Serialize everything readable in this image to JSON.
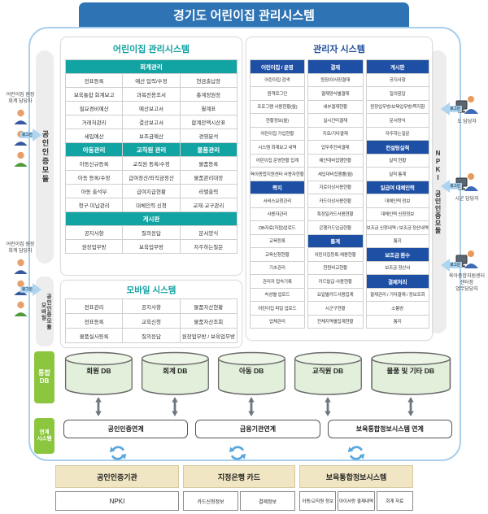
{
  "title": "경기도 어린이집 관리시스템",
  "login_label": "로그인",
  "modules": {
    "left_upper": "공인인증모듈",
    "left_lower_line1": "모바일",
    "left_lower_line2": "공인인증모듈",
    "right": "NPKI 공인인증모듈"
  },
  "left_users": [
    {
      "lines": [
        "어린이집 원장",
        "회계 담당자"
      ]
    },
    {
      "lines": [
        "어린이집 원장",
        "회계 담당자"
      ]
    }
  ],
  "right_users": [
    {
      "lines": [
        "도 담당자"
      ]
    },
    {
      "lines": [
        "시군 담당자"
      ]
    },
    {
      "lines": [
        "육아종합지원센터",
        "센터장",
        "업무담당자"
      ]
    }
  ],
  "daycare_panel": {
    "title": "어린이집 관리시스템",
    "sections": [
      {
        "header": "회계관리",
        "rows": [
          [
            "전표등록",
            "예산 입력/수정",
            "현금출납장"
          ],
          [
            "보육통합 회계보고",
            "과목전용조서",
            "총계정원장"
          ],
          [
            "필요경비예산",
            "예산보고서",
            "월계표"
          ],
          [
            "거래처관리",
            "결산보고서",
            "합계잔액시산표"
          ],
          [
            "세입예산",
            "보조금예산",
            "경영분석"
          ]
        ]
      },
      {
        "headers": [
          "아동관리",
          "교직원 관리",
          "물품관리"
        ],
        "rows": [
          [
            "아동신규등록",
            "교직원 등록/수정",
            "물품등록"
          ],
          [
            "아동 등록/수정",
            "급여정산/퇴직금정산",
            "물품관리대장"
          ],
          [
            "아동 출석부",
            "급여지급현황",
            "라벨출력"
          ],
          [
            "청구·미납관리",
            "대체인력 신청",
            "교재·교구관리"
          ]
        ]
      },
      {
        "header": "게시판",
        "rows": [
          [
            "공지사항",
            "질의응답",
            "문서양식"
          ],
          [
            "원장업무방",
            "보육업무방",
            "자주하는질문"
          ]
        ]
      }
    ]
  },
  "mobile_panel": {
    "title": "모바일 시스템",
    "rows": [
      [
        "전표관리",
        "공지사항",
        "물품자산현황"
      ],
      [
        "전표등록",
        "교육신청",
        "물품자산조회"
      ],
      [
        "물품실사등록",
        "질의응답",
        "원장업무방 / 보육업무방"
      ]
    ]
  },
  "admin_panel": {
    "title": "관리자 시스템",
    "columns": [
      {
        "header": "어린이집 / 운영",
        "cells": [
          {
            "t": "어린이집 검색"
          },
          {
            "t": "원격로그인"
          },
          {
            "t": "프로그램 사용현황(월)"
          },
          {
            "t": "현황정보(월)"
          },
          {
            "t": "어린이집 가입현황"
          },
          {
            "t": "시스템 회계보고 내역"
          },
          {
            "t": "어린이집 운영현황 집계"
          },
          {
            "t": "육아종합지원센터 사용자현황"
          },
          {
            "t": "쪽지",
            "h": true
          },
          {
            "t": "서비스요청관리"
          },
          {
            "t": "사용자관리"
          },
          {
            "t": "DB자료(직접)업로드"
          },
          {
            "t": "교육등록"
          },
          {
            "t": "교육신청현황"
          },
          {
            "t": "기초관리"
          },
          {
            "t": "관리자 접속기록"
          },
          {
            "t": "속성별 업로드"
          },
          {
            "t": "어린이집 파일 업로드"
          },
          {
            "t": "업체관리"
          }
        ]
      },
      {
        "header": "결재",
        "cells": [
          {
            "t": "원장/이사장결재"
          },
          {
            "t": "결재양식별결재"
          },
          {
            "t": "세부결재현황"
          },
          {
            "t": "실시간미결재"
          },
          {
            "t": "지로/기타결재"
          },
          {
            "t": "업무추진비결재"
          },
          {
            "t": "예산대비집행현황"
          },
          {
            "t": "세입대비집행률(월)"
          },
          {
            "t": "지로이상사용현황"
          },
          {
            "t": "카드이상사용현황"
          },
          {
            "t": "특정일카드사용현황"
          },
          {
            "t": "은행카드입금현황"
          },
          {
            "t": "통계",
            "h": true
          },
          {
            "t": "어린이집등록·채용현황"
          },
          {
            "t": "현원비교현황"
          },
          {
            "t": "카드발급·사용현황"
          },
          {
            "t": "요일별카드사용집계"
          },
          {
            "t": "시군구현황"
          },
          {
            "t": "전체지역별집계현황"
          }
        ]
      },
      {
        "header": "게시판",
        "cells": [
          {
            "t": "공지사항"
          },
          {
            "t": "질의응답"
          },
          {
            "t": "원장업무방/보육업무방/쪽지함"
          },
          {
            "t": "문서양식"
          },
          {
            "t": "자주하는질문"
          },
          {
            "t": "컨설팅실적",
            "h": true
          },
          {
            "t": "실적 현황"
          },
          {
            "t": "실적 통계"
          },
          {
            "t": "일급여 대체인력",
            "h": true
          },
          {
            "t": "대체인력 정보"
          },
          {
            "t": "대체인력 신청정보"
          },
          {
            "t": "보조금 신청내역 / 보조금 정산내역"
          },
          {
            "t": "통지"
          },
          {
            "t": "보조금 환수",
            "h": true
          },
          {
            "t": "보조금 정산서"
          },
          {
            "t": "결제처리",
            "h": true
          },
          {
            "t": "결제관리 / 기타결제 / 정보조회"
          },
          {
            "t": "소통방"
          },
          {
            "t": "통지"
          }
        ]
      }
    ]
  },
  "db_section": {
    "label_line1": "통합",
    "label_line2": "DB",
    "databases": [
      "회원 DB",
      "회계 DB",
      "아동 DB",
      "교직원 DB",
      "물품 및 기타 DB"
    ]
  },
  "link_section": {
    "label_line1": "연계",
    "label_line2": "시스템",
    "items": [
      "공인인증연계",
      "금융기관연계",
      "보육통합정보시스템 연계"
    ]
  },
  "external_systems": [
    {
      "title": "공인인증기관",
      "cells": [
        "NPKI"
      ]
    },
    {
      "title": "지정은행 카드",
      "cells": [
        "카드신청정보",
        "결제정보"
      ]
    },
    {
      "title": "보육통합정보시스템",
      "cells": [
        "아동/교직원 정보",
        "아이사랑 결제내역",
        "회계 자료"
      ]
    }
  ],
  "colors": {
    "title_blue": "#2e74b5",
    "teal": "#12a3a3",
    "admin_blue": "#1d4fa5",
    "green": "#8cc63f",
    "container_border": "#a9cfec"
  }
}
